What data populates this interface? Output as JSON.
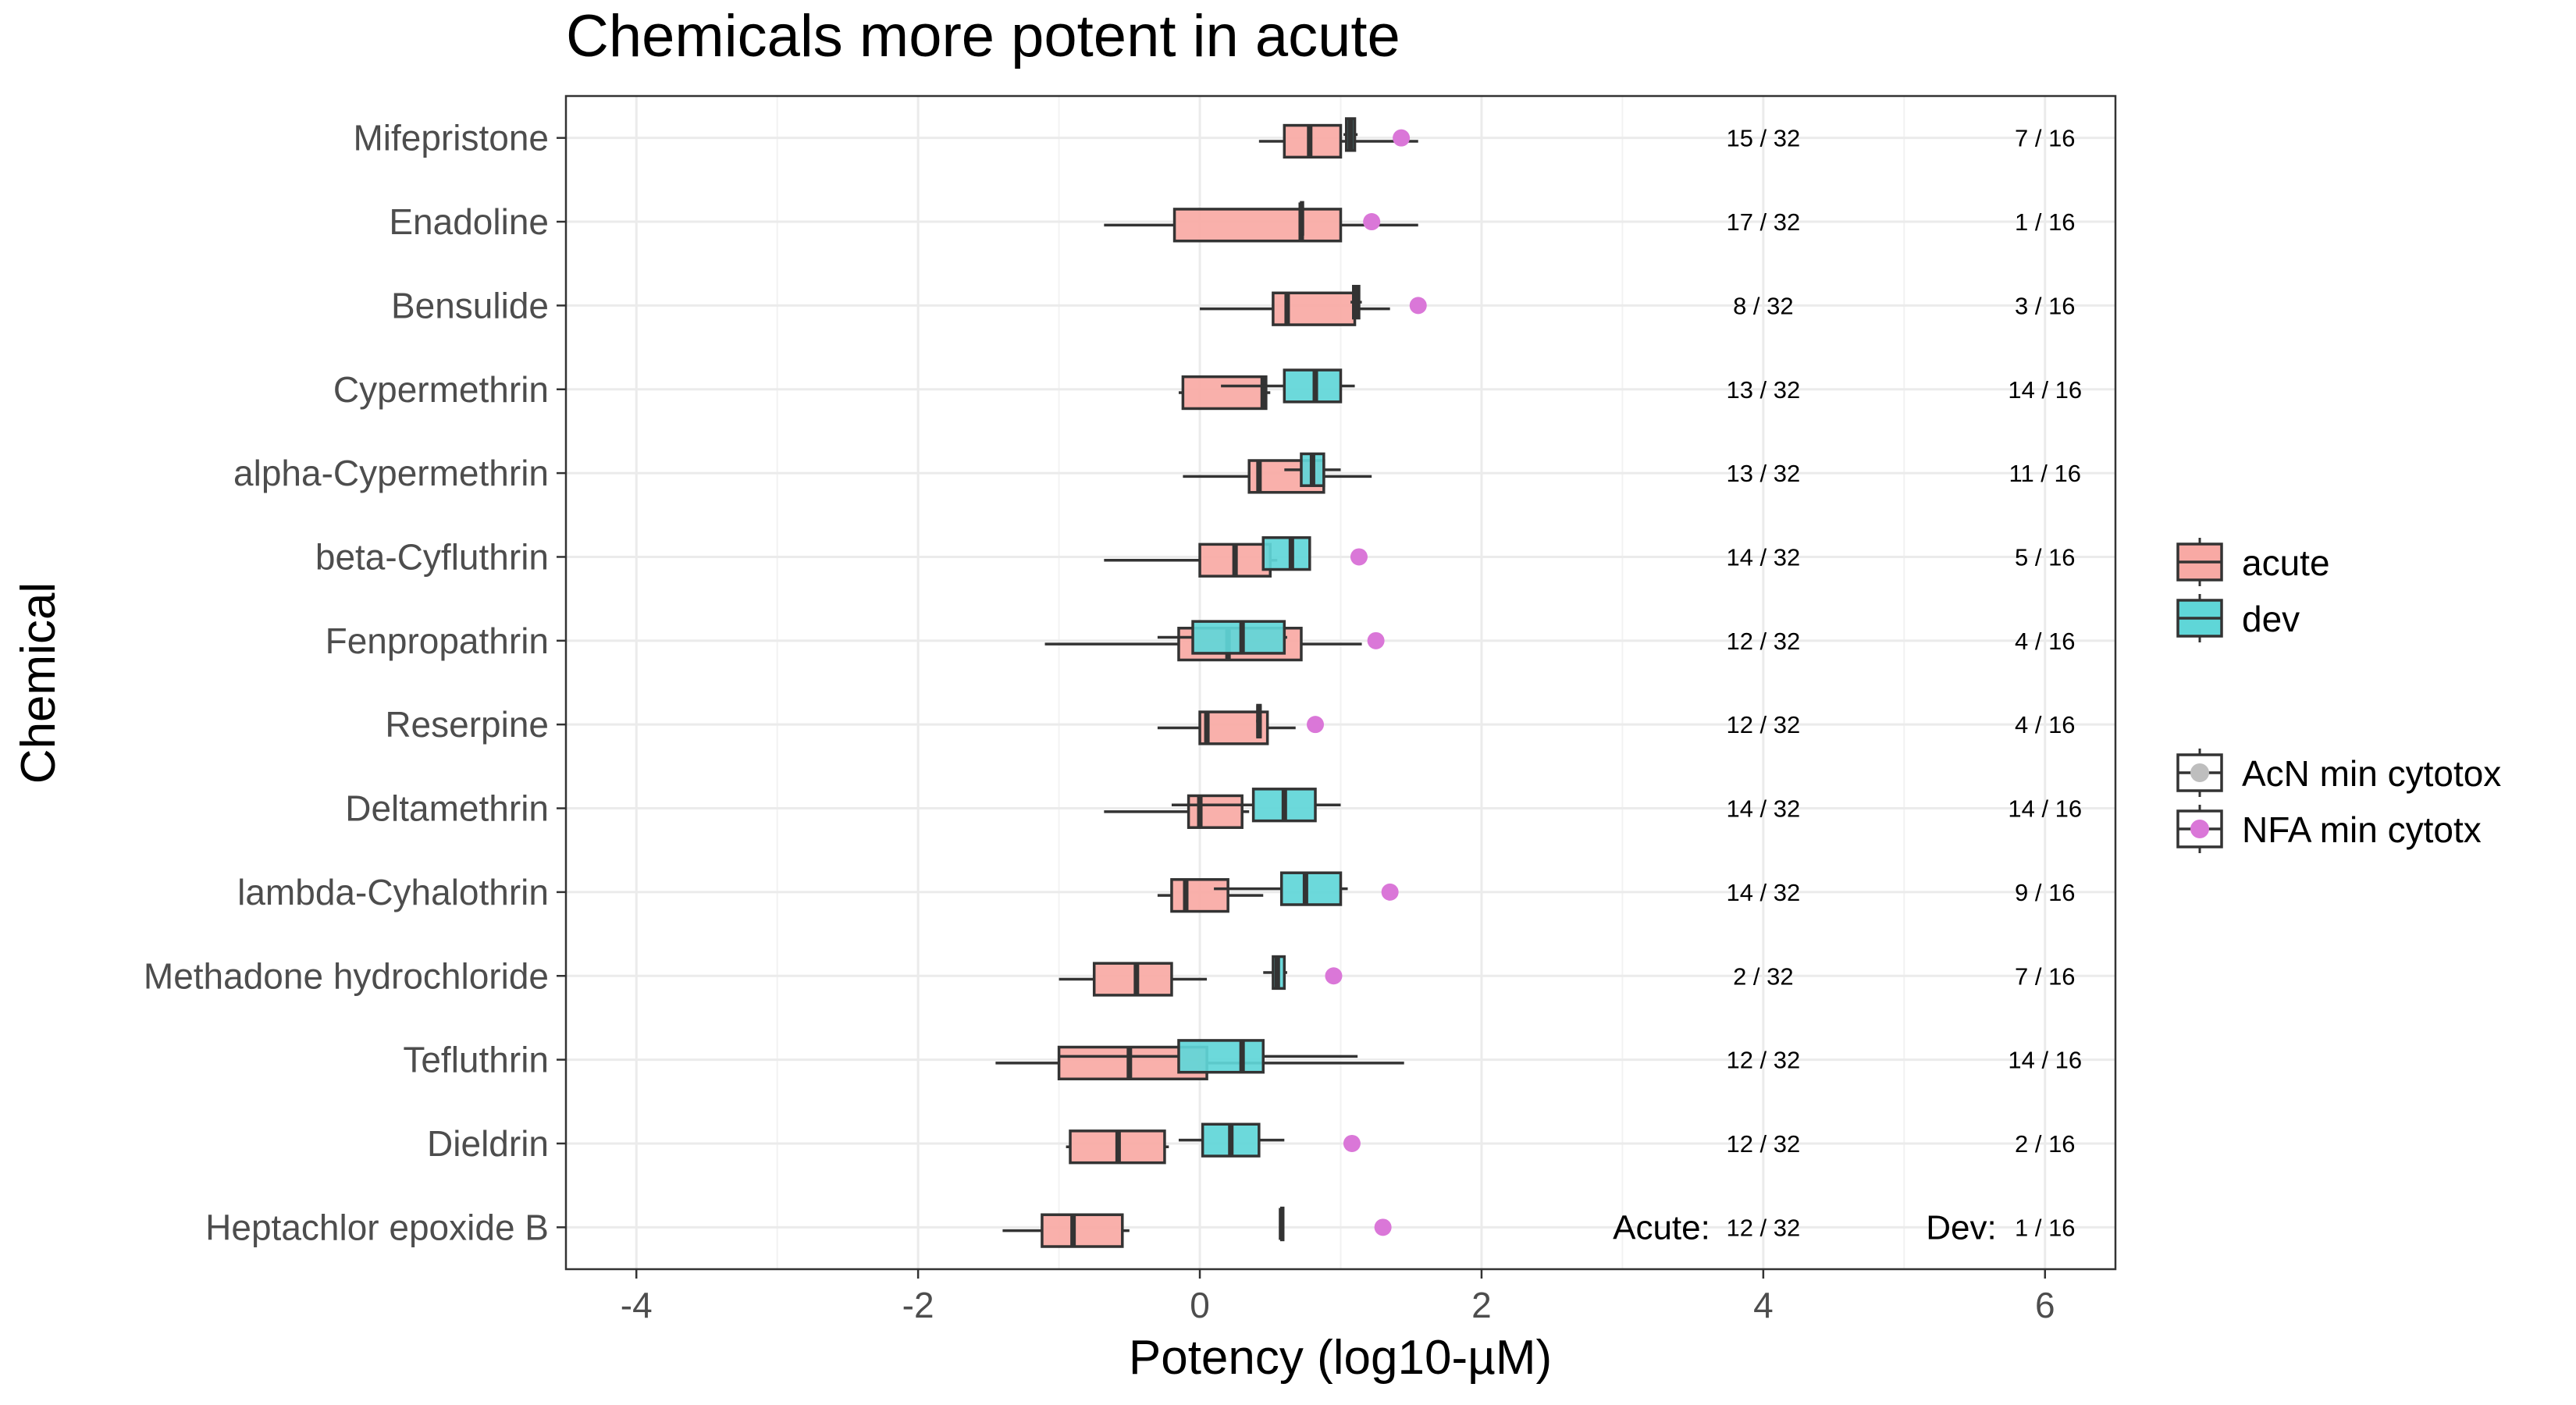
{
  "chart_data": {
    "type": "boxplot",
    "title": "Chemicals more potent in acute",
    "xlabel": "Potency (log10-µM)",
    "ylabel": "Chemical",
    "xlim": [
      -4.5,
      6.5
    ],
    "xticks": [
      -4,
      -2,
      0,
      2,
      4,
      6
    ],
    "xtick_labels": [
      "-4",
      "-2",
      "0",
      "2",
      "4",
      "6"
    ],
    "grid": true,
    "legend_position": "right",
    "legend_fill": [
      {
        "label": "acute",
        "color": "#F8A9A4"
      },
      {
        "label": "dev",
        "color": "#5FD6D8"
      }
    ],
    "legend_points": [
      {
        "label": "AcN min cytotox",
        "color": "#BEBEBE"
      },
      {
        "label": "NFA min cytotx",
        "color": "#DA77D8"
      }
    ],
    "count_labels": {
      "acute": "Acute:",
      "dev": "Dev:"
    },
    "count_x": {
      "acute": 4,
      "dev": 6
    },
    "chemicals": [
      {
        "name": "Mifepristone",
        "acute_count": "15 / 32",
        "dev_count": "7 / 16",
        "acute": [
          0.42,
          0.6,
          0.78,
          1.0,
          1.55
        ],
        "dev": [
          1.02,
          1.04,
          1.07,
          1.1,
          1.12
        ],
        "nfa": 1.43
      },
      {
        "name": "Enadoline",
        "acute_count": "17 / 32",
        "dev_count": "1 / 16",
        "acute": [
          -0.68,
          -0.18,
          0.72,
          1.0,
          1.55
        ],
        "dev": [
          0.72,
          0.72,
          0.72,
          0.72,
          0.72
        ],
        "nfa": 1.22
      },
      {
        "name": "Bensulide",
        "acute_count": "8 / 32",
        "dev_count": "3 / 16",
        "acute": [
          0.0,
          0.52,
          0.62,
          1.1,
          1.35
        ],
        "dev": [
          1.07,
          1.09,
          1.11,
          1.13,
          1.15
        ],
        "nfa": 1.55
      },
      {
        "name": "Cypermethrin",
        "acute_count": "13 / 32",
        "dev_count": "14 / 16",
        "acute": [
          -0.15,
          -0.12,
          0.45,
          0.47,
          0.5
        ],
        "dev": [
          0.15,
          0.6,
          0.82,
          1.0,
          1.1
        ],
        "nfa": null
      },
      {
        "name": "alpha-Cypermethrin",
        "acute_count": "13 / 32",
        "dev_count": "11 / 16",
        "acute": [
          -0.12,
          0.35,
          0.42,
          0.88,
          1.22
        ],
        "dev": [
          0.6,
          0.72,
          0.8,
          0.88,
          1.0
        ],
        "nfa": null
      },
      {
        "name": "beta-Cyfluthrin",
        "acute_count": "14 / 32",
        "dev_count": "5 / 16",
        "acute": [
          -0.68,
          0.0,
          0.25,
          0.5,
          0.55
        ],
        "dev": [
          0.45,
          0.45,
          0.65,
          0.78,
          0.78
        ],
        "nfa": 1.13
      },
      {
        "name": "Fenpropathrin",
        "acute_count": "12 / 32",
        "dev_count": "4 / 16",
        "acute": [
          -1.1,
          -0.15,
          0.2,
          0.72,
          1.15
        ],
        "dev": [
          -0.3,
          -0.05,
          0.3,
          0.6,
          0.62
        ],
        "nfa": 1.25
      },
      {
        "name": "Reserpine",
        "acute_count": "12 / 32",
        "dev_count": "4 / 16",
        "acute": [
          -0.3,
          0.0,
          0.05,
          0.48,
          0.68
        ],
        "dev": [
          0.4,
          0.41,
          0.42,
          0.43,
          0.44
        ],
        "nfa": 0.82
      },
      {
        "name": "Deltamethrin",
        "acute_count": "14 / 32",
        "dev_count": "14 / 16",
        "acute": [
          -0.68,
          -0.08,
          0.0,
          0.3,
          0.35
        ],
        "dev": [
          -0.2,
          0.38,
          0.6,
          0.82,
          1.0
        ],
        "nfa": null
      },
      {
        "name": "lambda-Cyhalothrin",
        "acute_count": "14 / 32",
        "dev_count": "9 / 16",
        "acute": [
          -0.3,
          -0.2,
          -0.1,
          0.2,
          0.45
        ],
        "dev": [
          0.1,
          0.58,
          0.75,
          1.0,
          1.05
        ],
        "nfa": 1.35
      },
      {
        "name": "Methadone hydrochloride",
        "acute_count": "2 / 32",
        "dev_count": "7 / 16",
        "acute": [
          -1.0,
          -0.75,
          -0.45,
          -0.2,
          0.05
        ],
        "dev": [
          0.45,
          0.52,
          0.55,
          0.6,
          0.62
        ],
        "nfa": 0.95
      },
      {
        "name": "Tefluthrin",
        "acute_count": "12 / 32",
        "dev_count": "14 / 16",
        "acute": [
          -1.45,
          -1.0,
          -0.5,
          0.05,
          1.45
        ],
        "dev": [
          -1.0,
          -0.15,
          0.3,
          0.45,
          1.12
        ],
        "nfa": null
      },
      {
        "name": "Dieldrin",
        "acute_count": "12 / 32",
        "dev_count": "2 / 16",
        "acute": [
          -0.95,
          -0.92,
          -0.58,
          -0.25,
          -0.22
        ],
        "dev": [
          -0.15,
          0.02,
          0.22,
          0.42,
          0.6
        ],
        "nfa": 1.08
      },
      {
        "name": "Heptachlor epoxide B",
        "acute_count": "12 / 32",
        "dev_count": "1 / 16",
        "acute": [
          -1.4,
          -1.12,
          -0.9,
          -0.55,
          -0.5
        ],
        "dev": [
          0.58,
          0.58,
          0.58,
          0.58,
          0.58
        ],
        "nfa": 1.3
      }
    ]
  }
}
